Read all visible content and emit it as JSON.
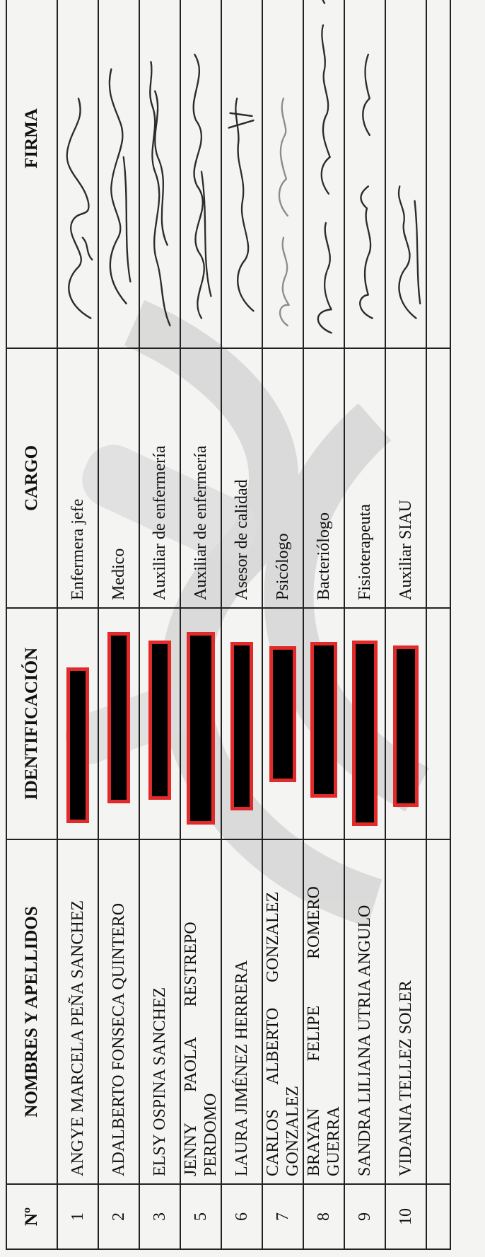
{
  "headers": {
    "num": "Nº",
    "name": "NOMBRES Y APELLIDOS",
    "id": "IDENTIFICACIÓN",
    "cargo": "CARGO",
    "firma": "FIRMA"
  },
  "rows": [
    {
      "num": "1",
      "name_l1": "ANGYE MARCELA PEÑA SANCHEZ",
      "name_l2": "",
      "cargo": "Enfermera jefe"
    },
    {
      "num": "2",
      "name_l1": "ADALBERTO FONSECA QUINTERO",
      "name_l2": "",
      "cargo": "Medico"
    },
    {
      "num": "3",
      "name_l1": "ELSY OSPINA SANCHEZ",
      "name_l2": "",
      "cargo": "Auxiliar de enfermería"
    },
    {
      "num": "5",
      "name_l1": "JENNY PAOLA RESTREPO",
      "name_l2": "PERDOMO",
      "cargo": "Auxiliar de enfermería"
    },
    {
      "num": "6",
      "name_l1": "LAURA JIMÉNEZ HERRERA",
      "name_l2": "",
      "cargo": "Asesor de calidad"
    },
    {
      "num": "7",
      "name_l1": "CARLOS ALBERTO GONZALEZ",
      "name_l2": "GONZALEZ",
      "cargo": "Psicólogo"
    },
    {
      "num": "8",
      "name_l1": "BRAYAN FELIPE ROMERO",
      "name_l2": "GUERRA",
      "cargo": "Bacteriólogo"
    },
    {
      "num": "9",
      "name_l1": "SANDRA LILIANA UTRIA ANGULO",
      "name_l2": "",
      "cargo": "Fisioterapeuta"
    },
    {
      "num": "10",
      "name_l1": "VIDANIA TELLEZ SOLER",
      "name_l2": "",
      "cargo": "Auxiliar SIAU"
    }
  ],
  "colors": {
    "redaction_fill": "#000000",
    "redaction_border": "#e12a2a",
    "watermark": "#cfcfcf"
  }
}
